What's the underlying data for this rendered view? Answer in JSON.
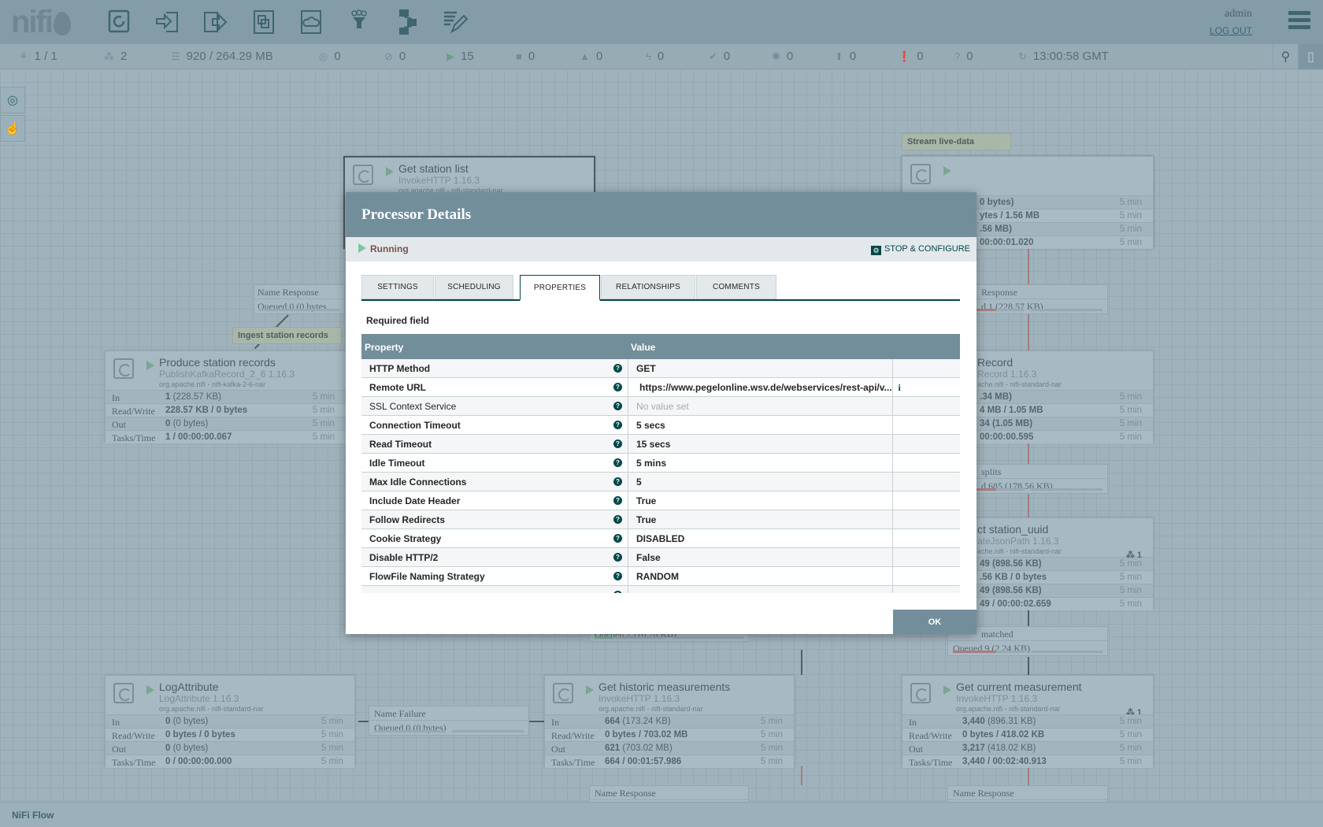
{
  "header": {
    "logo": "nifi",
    "user": "admin",
    "logout": "LOG OUT",
    "toolbar": [
      {
        "icon": "processor-icon"
      },
      {
        "icon": "input-port-icon"
      },
      {
        "icon": "output-port-icon"
      },
      {
        "icon": "process-group-icon"
      },
      {
        "icon": "remote-process-group-icon"
      },
      {
        "icon": "funnel-icon"
      },
      {
        "icon": "template-icon"
      },
      {
        "icon": "label-icon"
      }
    ]
  },
  "status": [
    {
      "icon": "cluster-icon",
      "glyph": "⚘",
      "value": "1 / 1"
    },
    {
      "icon": "threads-icon",
      "glyph": "⁂",
      "value": "2"
    },
    {
      "icon": "queued-icon",
      "glyph": "☰",
      "value": "920 / 264.29 MB"
    },
    {
      "icon": "transmitting-icon",
      "glyph": "◎",
      "value": "0"
    },
    {
      "icon": "not-transmitting-icon",
      "glyph": "⊘",
      "value": "0"
    },
    {
      "icon": "running-icon",
      "glyph": "▶",
      "value": "15"
    },
    {
      "icon": "stopped-icon",
      "glyph": "■",
      "value": "0"
    },
    {
      "icon": "invalid-icon",
      "glyph": "▲",
      "value": "0"
    },
    {
      "icon": "disabled-icon",
      "glyph": "ϟ",
      "value": "0"
    },
    {
      "icon": "up-to-date-icon",
      "glyph": "✔",
      "value": "0"
    },
    {
      "icon": "locally-modified-icon",
      "glyph": "✱",
      "value": "0"
    },
    {
      "icon": "stale-icon",
      "glyph": "⬆",
      "value": "0"
    },
    {
      "icon": "modified-stale-icon",
      "glyph": "❗",
      "value": "0"
    },
    {
      "icon": "sync-failure-icon",
      "glyph": "?",
      "value": "0"
    },
    {
      "icon": "refresh-icon",
      "glyph": "↻",
      "value": "13:00:58 GMT"
    }
  ],
  "footer": {
    "breadcrumb": "NiFi Flow"
  },
  "canvas": {
    "labels": [
      {
        "text": "Stream live-data"
      },
      {
        "text": "Ingest station records"
      }
    ],
    "processors": [
      {
        "name": "Get station list",
        "type": "InvokeHTTP 1.16.3",
        "bundle": "org.apache.nifi - nifi-standard-nar",
        "selected": true
      },
      {
        "name": "Get station list",
        "type": "InvokeHTTP 1.16.3",
        "bundle": "org.apache.nifi - nifi-standard-nar"
      },
      {
        "name": "Produce station records",
        "type": "PublishKafkaRecord_2_6 1.16.3",
        "bundle": "org.apache.nifi - nifi-kafka-2-6-nar",
        "stats": [
          [
            "In",
            "1",
            "(228.57 KB)",
            "5 min"
          ],
          [
            "Read/Write",
            "228.57 KB / 0 bytes",
            "",
            "5 min"
          ],
          [
            "Out",
            "0",
            "(0 bytes)",
            "5 min"
          ],
          [
            "Tasks/Time",
            "1 / 00:00:00.067",
            "",
            "5 min"
          ]
        ]
      },
      {
        "name": "LogAttribute",
        "type": "LogAttribute 1.16.3",
        "bundle": "org.apache.nifi - nifi-standard-nar",
        "stats": [
          [
            "In",
            "0",
            "(0 bytes)",
            "5 min"
          ],
          [
            "Read/Write",
            "0 bytes / 0 bytes",
            "",
            "5 min"
          ],
          [
            "Out",
            "0",
            "(0 bytes)",
            "5 min"
          ],
          [
            "Tasks/Time",
            "0 / 00:00:00.000",
            "",
            "5 min"
          ]
        ]
      },
      {
        "name": "Get historic measurements",
        "type": "InvokeHTTP 1.16.3",
        "bundle": "org.apache.nifi - nifi-standard-nar",
        "stats": [
          [
            "In",
            "664",
            "(173.24 KB)",
            "5 min"
          ],
          [
            "Read/Write",
            "0 bytes / 703.02 MB",
            "",
            "5 min"
          ],
          [
            "Out",
            "621",
            "(703.02 MB)",
            "5 min"
          ],
          [
            "Tasks/Time",
            "664 / 00:01:57.986",
            "",
            "5 min"
          ]
        ]
      },
      {
        "name": "Get current measurement",
        "type": "InvokeHTTP 1.16.3",
        "bundle": "org.apache.nifi - nifi-standard-nar",
        "threads": "1",
        "stats": [
          [
            "In",
            "3,440",
            "(896.31 KB)",
            "5 min"
          ],
          [
            "Read/Write",
            "0 bytes / 418.02 KB",
            "",
            "5 min"
          ],
          [
            "Out",
            "3,217",
            "(418.02 KB)",
            "5 min"
          ],
          [
            "Tasks/Time",
            "3,440 / 00:02:40.913",
            "",
            "5 min"
          ]
        ]
      }
    ],
    "partial_processors": [
      {
        "rows": [
          "0 bytes)",
          "ytes / 1.56 MB",
          ".56 MB)",
          "00:00:01.020"
        ],
        "time": "5 min"
      },
      {
        "name": "Record",
        "type": "Record 1.16.3",
        "bundle": "ache.nifi - nifi-standard-nar",
        "rows": [
          ".34 MB)",
          "4 MB / 1.05 MB",
          "34 (1.05 MB)",
          "00:00:00.595"
        ],
        "time": "5 min"
      },
      {
        "name": "ct station_uuid",
        "type": "ateJsonPath 1.16.3",
        "bundle": "ache.nifi - nifi-standard-nar",
        "threads": "1",
        "rows": [
          "49 (898.56 KB)",
          ".56 KB / 0 bytes",
          "49 (898.56 KB)",
          "49 / 00:00:02.659"
        ],
        "time": "5 min"
      }
    ],
    "connections": [
      {
        "r1": "Name  Response",
        "r2": "Queued  0 (0 bytes"
      },
      {
        "r1": "Response",
        "r2": "d  1 (228.57 KB)"
      },
      {
        "r1": "splits",
        "r2": "d  685 (178.56 KB)"
      },
      {
        "r1": "matched",
        "r2": "Queued  9 (2.24 KB)"
      },
      {
        "r1": "Name  Failure",
        "r2": "Queued  0 (0 bytes)"
      },
      {
        "r1": "",
        "r2": "Queued  25 (6.28 KB)"
      },
      {
        "r1": "Name  Response",
        "r2": ""
      },
      {
        "r1": "Name  Response",
        "r2": ""
      }
    ]
  },
  "dialog": {
    "title": "Processor Details",
    "state": "Running",
    "stop_configure": "STOP & CONFIGURE",
    "tabs": [
      "SETTINGS",
      "SCHEDULING",
      "PROPERTIES",
      "RELATIONSHIPS",
      "COMMENTS"
    ],
    "active_tab": "PROPERTIES",
    "required_field": "Required field",
    "columns": {
      "property": "Property",
      "value": "Value"
    },
    "properties": [
      {
        "name": "HTTP Method",
        "value": "GET",
        "required": true
      },
      {
        "name": "Remote URL",
        "value": "https://www.pegelonline.wsv.de/webservices/rest-api/v...",
        "required": true
      },
      {
        "name": "SSL Context Service",
        "value": "No value set",
        "required": false
      },
      {
        "name": "Connection Timeout",
        "value": "5 secs",
        "required": true
      },
      {
        "name": "Read Timeout",
        "value": "15 secs",
        "required": true
      },
      {
        "name": "Idle Timeout",
        "value": "5 mins",
        "required": true
      },
      {
        "name": "Max Idle Connections",
        "value": "5",
        "required": true
      },
      {
        "name": "Include Date Header",
        "value": "True",
        "required": true
      },
      {
        "name": "Follow Redirects",
        "value": "True",
        "required": true
      },
      {
        "name": "Cookie Strategy",
        "value": "DISABLED",
        "required": true
      },
      {
        "name": "Disable HTTP/2",
        "value": "False",
        "required": true
      },
      {
        "name": "FlowFile Naming Strategy",
        "value": "RANDOM",
        "required": true
      }
    ],
    "ok": "OK"
  }
}
